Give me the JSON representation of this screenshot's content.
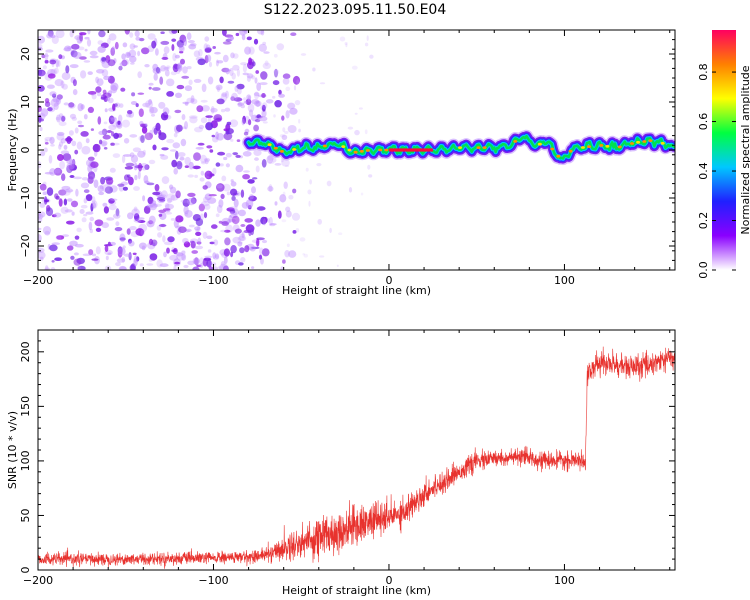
{
  "title": "S122.2023.095.11.50.E04",
  "chart_data": [
    {
      "type": "heatmap",
      "xlabel": "Height of straight line (km)",
      "ylabel": "Frequency (Hz)",
      "xlim": [
        -200,
        163
      ],
      "ylim": [
        -25,
        25
      ],
      "xticks": [
        -200,
        -100,
        0,
        100
      ],
      "yticks": [
        -20,
        -10,
        0,
        10,
        20
      ],
      "colorbar": {
        "label": "Normalized spectral amplitude",
        "range": [
          0,
          0.97
        ],
        "ticks": [
          0.0,
          0.2,
          0.4,
          0.6,
          0.8
        ],
        "colormap": [
          "#ffffff",
          "#8a00ff",
          "#2020ff",
          "#00c8ff",
          "#00ff40",
          "#ffff00",
          "#ff8000",
          "#ff0060"
        ]
      },
      "noise_region_x": [
        -200,
        -70
      ],
      "signal_track": {
        "x": [
          -80,
          -70,
          -60,
          -50,
          -40,
          -30,
          -20,
          -10,
          0,
          10,
          20,
          30,
          40,
          50,
          60,
          70,
          75,
          80,
          85,
          90,
          95,
          100,
          105,
          110,
          120,
          130,
          140,
          150,
          160,
          163
        ],
        "freq_hz": [
          1.5,
          1.5,
          -0.5,
          0.5,
          0.5,
          1.5,
          -0.5,
          0.0,
          0.0,
          0.0,
          0.0,
          0.0,
          0.5,
          0.5,
          0.5,
          1.0,
          3.0,
          2.0,
          1.0,
          2.0,
          -1.0,
          -2.0,
          0.5,
          0.5,
          1.0,
          0.5,
          1.5,
          2.0,
          1.0,
          0.5
        ],
        "peak_amplitude_x": [
          0,
          25
        ]
      }
    },
    {
      "type": "line",
      "xlabel": "Height of straight line (km)",
      "ylabel": "SNR (10 * v/v)",
      "xlim": [
        -200,
        163
      ],
      "ylim": [
        0,
        220
      ],
      "xticks": [
        -200,
        -100,
        0,
        100
      ],
      "yticks": [
        0,
        50,
        100,
        150,
        200
      ],
      "color": "#e8322e",
      "series": [
        {
          "x": [
            -200,
            -150,
            -100,
            -80,
            -70,
            -60,
            -50,
            -40,
            -30,
            -20,
            -10,
            0,
            10,
            20,
            30,
            40,
            50,
            60,
            70,
            80,
            90,
            100,
            110,
            112,
            113,
            120,
            130,
            140,
            150,
            163
          ],
          "y": [
            10,
            10,
            11,
            12,
            14,
            20,
            25,
            30,
            35,
            40,
            45,
            48,
            55,
            70,
            80,
            90,
            100,
            102,
            103,
            103,
            100,
            100,
            100,
            100,
            180,
            190,
            188,
            185,
            190,
            195
          ],
          "noise_amplitude": [
            5,
            5,
            5,
            5,
            6,
            10,
            14,
            18,
            18,
            16,
            14,
            14,
            12,
            10,
            9,
            8,
            8,
            7,
            7,
            7,
            7,
            7,
            7,
            7,
            10,
            10,
            10,
            10,
            10,
            10
          ]
        }
      ]
    }
  ]
}
